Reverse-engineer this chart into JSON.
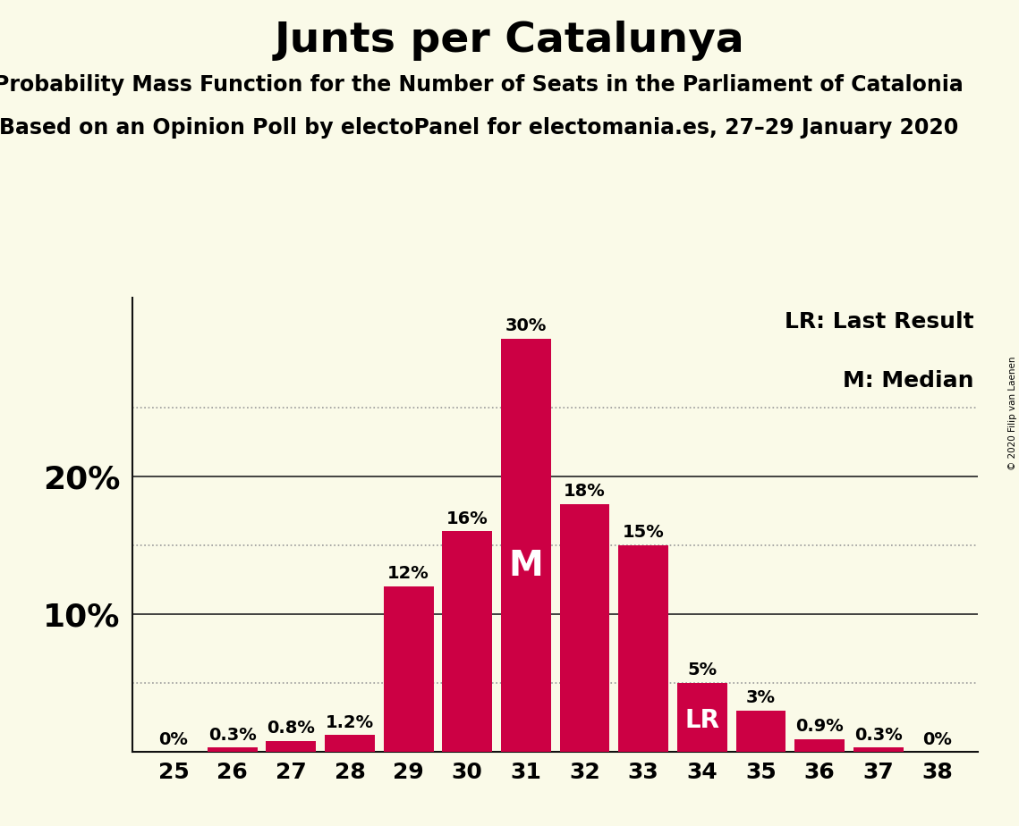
{
  "title": "Junts per Catalunya",
  "subtitle1": "Probability Mass Function for the Number of Seats in the Parliament of Catalonia",
  "subtitle2": "Based on an Opinion Poll by electoPanel for electomania.es, 27–29 January 2020",
  "copyright": "© 2020 Filip van Laenen",
  "seats": [
    25,
    26,
    27,
    28,
    29,
    30,
    31,
    32,
    33,
    34,
    35,
    36,
    37,
    38
  ],
  "values": [
    0.0,
    0.3,
    0.8,
    1.2,
    12.0,
    16.0,
    30.0,
    18.0,
    15.0,
    5.0,
    3.0,
    0.9,
    0.3,
    0.0
  ],
  "labels": [
    "0%",
    "0.3%",
    "0.8%",
    "1.2%",
    "12%",
    "16%",
    "30%",
    "18%",
    "15%",
    "5%",
    "3%",
    "0.9%",
    "0.3%",
    "0%"
  ],
  "bar_color": "#CC0044",
  "background_color": "#FAFAE8",
  "median_seat": 31,
  "last_result_seat": 34,
  "dotted_lines": [
    5,
    15,
    25
  ],
  "solid_lines": [
    10,
    20
  ],
  "legend_text1": "LR: Last Result",
  "legend_text2": "M: Median",
  "title_fontsize": 34,
  "subtitle_fontsize": 17,
  "label_fontsize": 14,
  "tick_fontsize": 18,
  "legend_fontsize": 18,
  "ylabel_fontsize": 26,
  "median_label_fontsize": 28,
  "lr_label_fontsize": 20
}
